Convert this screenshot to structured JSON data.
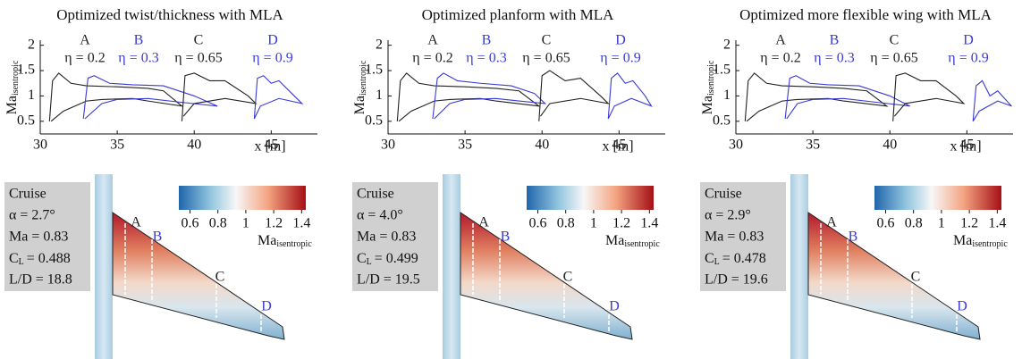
{
  "chart_data": [
    {
      "type": "line",
      "title": "Optimized twist/thickness with MLA",
      "xlabel": "x [m]",
      "ylabel": "Ma",
      "ylabel_sub": "isentropic",
      "xlim": [
        30,
        48
      ],
      "ylim": [
        0.25,
        2.1
      ],
      "xticks": [
        30,
        35,
        40,
        45
      ],
      "yticks": [
        0.5,
        1,
        1.5,
        2
      ],
      "series": [
        {
          "name": "A",
          "label": "η = 0.2",
          "color": "#222222",
          "x": [
            30.6,
            30.8,
            31.2,
            32,
            33,
            35,
            37,
            38,
            39.2,
            37,
            36,
            34,
            33,
            31.5,
            30.7
          ],
          "values": [
            0.5,
            1.3,
            1.45,
            1.25,
            1.2,
            1.18,
            1.15,
            1.1,
            0.8,
            0.9,
            0.95,
            0.93,
            0.9,
            0.7,
            0.5
          ]
        },
        {
          "name": "B",
          "label": "η = 0.3",
          "color": "#3a3ad6",
          "x": [
            32.8,
            33.1,
            33.5,
            34.5,
            36,
            38,
            40,
            41.5,
            39,
            37,
            35,
            34,
            32.9
          ],
          "values": [
            0.55,
            1.35,
            1.4,
            1.25,
            1.22,
            1.2,
            1.0,
            0.8,
            0.88,
            0.95,
            0.93,
            0.85,
            0.55
          ]
        },
        {
          "name": "C",
          "label": "η = 0.65",
          "color": "#222222",
          "x": [
            39.2,
            39.4,
            40,
            41,
            42,
            43.5,
            44,
            42,
            40,
            39.3
          ],
          "values": [
            0.5,
            1.4,
            1.45,
            1.3,
            1.3,
            1.0,
            0.85,
            0.95,
            0.85,
            0.6
          ]
        },
        {
          "name": "D",
          "label": "η = 0.9",
          "color": "#3a3ad6",
          "x": [
            43.9,
            44.1,
            44.5,
            45,
            45.5,
            46.5,
            47,
            45.5,
            44.3,
            43.9
          ],
          "values": [
            0.55,
            1.35,
            1.4,
            1.25,
            1.3,
            1.0,
            0.85,
            0.95,
            0.8,
            0.55
          ]
        }
      ]
    },
    {
      "type": "line",
      "title": "Optimized planform with MLA",
      "xlabel": "x [m]",
      "ylabel": "Ma",
      "ylabel_sub": "isentropic",
      "xlim": [
        30,
        48
      ],
      "ylim": [
        0.25,
        2.1
      ],
      "xticks": [
        30,
        35,
        40,
        45
      ],
      "yticks": [
        0.5,
        1,
        1.5,
        2
      ],
      "series": [
        {
          "name": "A",
          "label": "η = 0.2",
          "color": "#222222",
          "x": [
            30.6,
            30.8,
            31.2,
            32,
            33,
            35,
            37,
            38.5,
            39.8,
            37,
            36,
            34,
            33,
            31.5,
            30.7
          ],
          "values": [
            0.5,
            1.3,
            1.45,
            1.25,
            1.2,
            1.18,
            1.15,
            1.1,
            0.8,
            0.9,
            0.95,
            0.93,
            0.9,
            0.7,
            0.5
          ]
        },
        {
          "name": "B",
          "label": "η = 0.3",
          "color": "#3a3ad6",
          "x": [
            32.9,
            33.2,
            33.6,
            34.5,
            36,
            38,
            39.5,
            40.2,
            38.5,
            37,
            35,
            34,
            33
          ],
          "values": [
            0.55,
            1.35,
            1.45,
            1.3,
            1.25,
            1.2,
            1.05,
            0.85,
            0.9,
            0.95,
            0.93,
            0.85,
            0.55
          ]
        },
        {
          "name": "C",
          "label": "η = 0.65",
          "color": "#222222",
          "x": [
            39.8,
            40,
            40.5,
            41.5,
            42.5,
            43.8,
            44.3,
            42.5,
            40.5,
            39.9
          ],
          "values": [
            0.5,
            1.4,
            1.5,
            1.3,
            1.35,
            1.0,
            0.85,
            0.95,
            0.85,
            0.6
          ]
        },
        {
          "name": "D",
          "label": "η = 0.9",
          "color": "#3a3ad6",
          "x": [
            44.3,
            44.5,
            44.9,
            45.4,
            45.9,
            46.7,
            47.1,
            45.8,
            44.7,
            44.3
          ],
          "values": [
            0.55,
            1.35,
            1.45,
            1.25,
            1.3,
            1.0,
            0.8,
            0.95,
            0.8,
            0.55
          ]
        }
      ]
    },
    {
      "type": "line",
      "title": "Optimized more flexible wing with MLA",
      "xlabel": "x [m]",
      "ylabel": "Ma",
      "ylabel_sub": "isentropic",
      "xlim": [
        30,
        48
      ],
      "ylim": [
        0.25,
        2.1
      ],
      "xticks": [
        30,
        35,
        40,
        45
      ],
      "yticks": [
        0.5,
        1,
        1.5,
        2
      ],
      "series": [
        {
          "name": "A",
          "label": "η = 0.2",
          "color": "#222222",
          "x": [
            30.6,
            30.8,
            31.2,
            32,
            33,
            35,
            37,
            38.5,
            39.8,
            37,
            36,
            34,
            33,
            31.5,
            30.7
          ],
          "values": [
            0.5,
            1.3,
            1.45,
            1.25,
            1.2,
            1.18,
            1.15,
            1.1,
            0.8,
            0.9,
            0.95,
            0.93,
            0.9,
            0.7,
            0.5
          ]
        },
        {
          "name": "B",
          "label": "η = 0.3",
          "color": "#3a3ad6",
          "x": [
            33.2,
            33.5,
            33.9,
            34.8,
            36,
            38,
            40,
            41.3,
            39,
            37,
            35,
            34,
            33.3
          ],
          "values": [
            0.55,
            1.35,
            1.4,
            1.25,
            1.22,
            1.2,
            1.0,
            0.8,
            0.88,
            0.95,
            0.93,
            0.85,
            0.55
          ]
        },
        {
          "name": "C",
          "label": "η = 0.65",
          "color": "#222222",
          "x": [
            40.2,
            40.4,
            41,
            42,
            43,
            44.3,
            44.8,
            43,
            41,
            40.3
          ],
          "values": [
            0.5,
            1.4,
            1.45,
            1.3,
            1.3,
            1.0,
            0.85,
            0.95,
            0.85,
            0.6
          ]
        },
        {
          "name": "D",
          "label": "η = 0.9",
          "color": "#3a3ad6",
          "x": [
            45.4,
            45.6,
            46,
            46.5,
            47,
            47.6,
            47.9,
            47,
            45.8,
            45.4
          ],
          "values": [
            0.5,
            1.2,
            1.3,
            1.0,
            1.1,
            0.9,
            0.8,
            0.9,
            0.7,
            0.5
          ]
        }
      ]
    }
  ],
  "panels": [
    {
      "lines": [
        "Cruise",
        "α = 2.7°",
        "Ma = 0.83"
      ],
      "cl_symbol": "C",
      "cl_sub": "L",
      "cl_value": "= 0.488",
      "ld": "L/D = 18.8",
      "colorbar": {
        "lim": [
          0.52,
          1.43
        ],
        "ticks": [
          0.6,
          0.8,
          1,
          1.2,
          1.4
        ],
        "label": "Ma",
        "label_sub": "isentropic"
      }
    },
    {
      "lines": [
        "Cruise",
        "α = 4.0°",
        "Ma = 0.83"
      ],
      "cl_symbol": "C",
      "cl_sub": "L",
      "cl_value": "= 0.499",
      "ld": "L/D = 19.5",
      "colorbar": {
        "lim": [
          0.52,
          1.43
        ],
        "ticks": [
          0.6,
          0.8,
          1,
          1.2,
          1.4
        ],
        "label": "Ma",
        "label_sub": "isentropic"
      }
    },
    {
      "lines": [
        "Cruise",
        "α = 2.9°",
        "Ma = 0.83"
      ],
      "cl_symbol": "C",
      "cl_sub": "L",
      "cl_value": "= 0.478",
      "ld": "L/D = 19.6",
      "colorbar": {
        "lim": [
          0.52,
          1.43
        ],
        "ticks": [
          0.6,
          0.8,
          1,
          1.2,
          1.4
        ],
        "label": "Ma",
        "label_sub": "isentropic"
      }
    }
  ]
}
